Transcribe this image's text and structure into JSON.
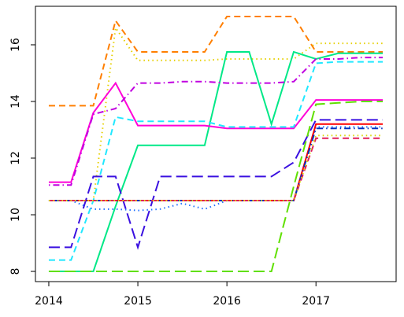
{
  "chart_data": {
    "type": "line",
    "x": [
      2014,
      2014.25,
      2014.5,
      2014.75,
      2015,
      2015.25,
      2015.5,
      2015.75,
      2016,
      2016.25,
      2016.5,
      2016.75,
      2017,
      2017.25,
      2017.5,
      2017.75
    ],
    "xlim": [
      2013.85,
      2017.9
    ],
    "xticks": [
      2014,
      2015,
      2016,
      2017
    ],
    "ylim": [
      7.64,
      17.36
    ],
    "yticks": [
      8,
      10,
      12,
      14,
      16
    ],
    "series": [
      {
        "color": "#ff7f00",
        "dash": "dashed",
        "values": [
          13.85,
          13.85,
          13.85,
          16.85,
          15.75,
          15.75,
          15.75,
          15.75,
          17.0,
          17.0,
          17.0,
          17.0,
          15.75,
          15.75,
          15.75,
          15.75
        ]
      },
      {
        "color": "#e6d000",
        "dash": "dotted",
        "values": [
          10.5,
          10.5,
          10.5,
          16.6,
          15.45,
          15.45,
          15.45,
          15.45,
          15.5,
          15.5,
          15.5,
          15.5,
          16.05,
          16.05,
          16.05,
          16.05
        ]
      },
      {
        "color": "#00e887",
        "dash": "solid",
        "values": [
          8,
          8,
          8,
          10.3,
          12.45,
          12.45,
          12.45,
          12.45,
          15.75,
          15.75,
          13.2,
          15.75,
          15.5,
          15.7,
          15.7,
          15.7
        ]
      },
      {
        "color": "#ff00d8",
        "dash": "solid",
        "values": [
          11.15,
          11.15,
          13.6,
          14.65,
          13.15,
          13.15,
          13.15,
          13.15,
          13.05,
          13.05,
          13.05,
          13.05,
          14.05,
          14.05,
          14.05,
          14.05
        ]
      },
      {
        "color": "#c000e0",
        "dash": "dotdash",
        "values": [
          11.05,
          11.05,
          13.55,
          13.75,
          14.65,
          14.65,
          14.7,
          14.7,
          14.65,
          14.65,
          14.65,
          14.7,
          15.5,
          15.5,
          15.55,
          15.55
        ]
      },
      {
        "color": "#20e8ff",
        "dash": "dashed",
        "values": [
          8.4,
          8.4,
          10.5,
          13.45,
          13.3,
          13.3,
          13.3,
          13.3,
          13.1,
          13.1,
          13.1,
          13.1,
          15.35,
          15.4,
          15.4,
          15.4
        ]
      },
      {
        "color": "#3a10e0",
        "dash": "longdash",
        "values": [
          8.85,
          8.85,
          11.35,
          11.35,
          8.85,
          11.35,
          11.35,
          11.35,
          11.35,
          11.35,
          11.35,
          11.85,
          13.35,
          13.35,
          13.35,
          13.35
        ]
      },
      {
        "color": "#60e000",
        "dash": "longdash",
        "values": [
          8,
          8,
          8,
          8,
          8,
          8,
          8,
          8,
          8,
          8,
          8,
          11,
          13.9,
          13.95,
          14.0,
          14.0
        ]
      },
      {
        "color": "#2070ff",
        "dash": "dotted",
        "values": [
          10.5,
          10.5,
          10.2,
          10.2,
          10.15,
          10.2,
          10.4,
          10.2,
          10.5,
          10.5,
          10.5,
          10.5,
          13.1,
          13.1,
          13.1,
          13.1
        ]
      },
      {
        "color": "#ff0000",
        "dash": "solid",
        "values": [
          10.5,
          10.5,
          10.5,
          10.5,
          10.5,
          10.5,
          10.5,
          10.5,
          10.5,
          10.5,
          10.5,
          10.5,
          13.2,
          13.2,
          13.2,
          13.2
        ]
      },
      {
        "color": "#0030c0",
        "dash": "dotdash",
        "values": [
          10.5,
          10.5,
          10.5,
          10.5,
          10.5,
          10.5,
          10.5,
          10.5,
          10.5,
          10.5,
          10.5,
          10.5,
          13.05,
          13.05,
          13.05,
          13.05
        ]
      },
      {
        "color": "#e0205a",
        "dash": "dashed",
        "values": [
          10.5,
          10.5,
          10.5,
          10.5,
          10.5,
          10.5,
          10.5,
          10.5,
          10.5,
          10.5,
          10.5,
          10.5,
          12.7,
          12.7,
          12.7,
          12.7
        ]
      },
      {
        "color": "#d8d800",
        "dash": "dotted",
        "values": [
          10.5,
          10.5,
          10.5,
          10.5,
          10.5,
          10.5,
          10.5,
          10.5,
          10.5,
          10.5,
          10.5,
          10.5,
          12.8,
          12.8,
          12.8,
          12.8
        ]
      }
    ]
  }
}
